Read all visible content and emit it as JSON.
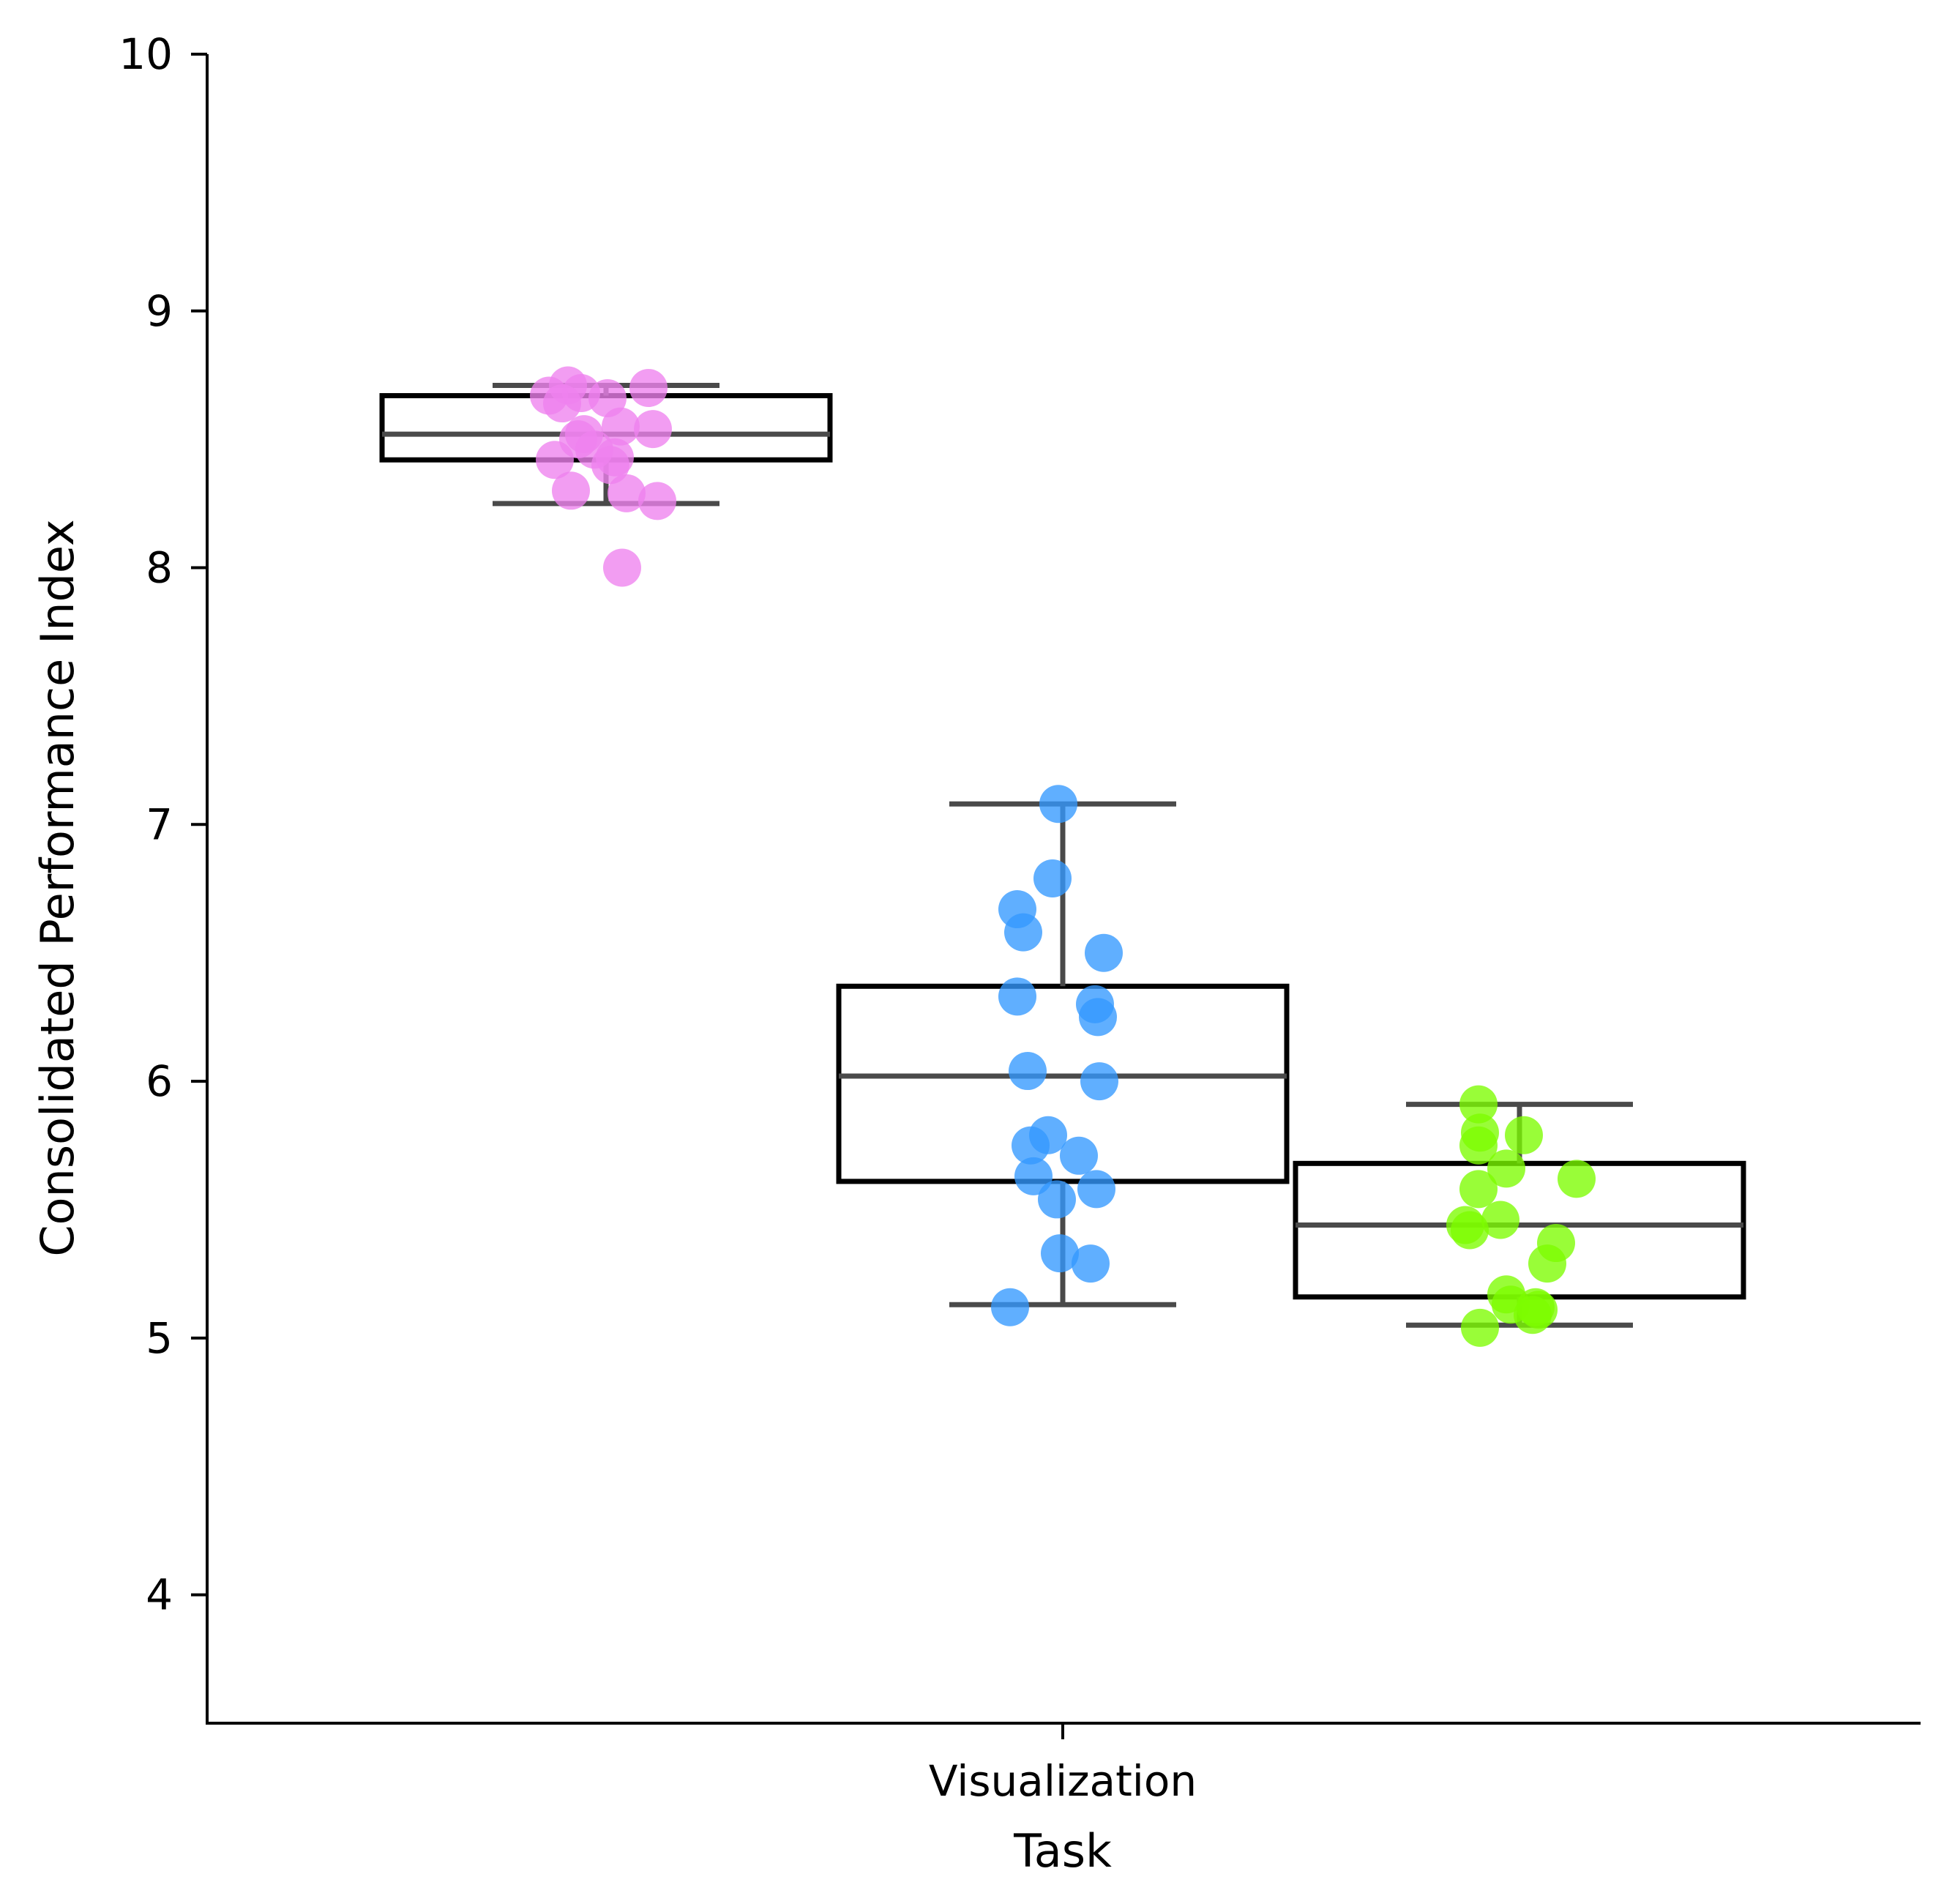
{
  "chart_data": {
    "type": "box",
    "title": "",
    "xlabel": "Task",
    "ylabel": "Consolidated Performance Index",
    "categories": [
      "Visualization"
    ],
    "ylim": [
      3.5,
      10
    ],
    "yticks": [
      4,
      5,
      6,
      7,
      8,
      9,
      10
    ],
    "grid": false,
    "legend": "none",
    "series": [
      {
        "color": "#ee82ee",
        "box": {
          "whisker_low": 8.25,
          "q1": 8.42,
          "median": 8.52,
          "q3": 8.67,
          "whisker_high": 8.71
        },
        "points": [
          8.71,
          8.7,
          8.68,
          8.67,
          8.66,
          8.64,
          8.55,
          8.54,
          8.52,
          8.5,
          8.46,
          8.43,
          8.42,
          8.4,
          8.3,
          8.29,
          8.26,
          8.0
        ]
      },
      {
        "color": "#3399ff",
        "box": {
          "whisker_low": 5.13,
          "q1": 5.61,
          "median": 6.02,
          "q3": 6.37,
          "whisker_high": 7.08
        },
        "points": [
          7.08,
          6.79,
          6.67,
          6.58,
          6.5,
          6.33,
          6.3,
          6.25,
          6.04,
          6.0,
          5.79,
          5.75,
          5.71,
          5.63,
          5.58,
          5.54,
          5.33,
          5.29,
          5.12
        ]
      },
      {
        "color": "#7cfc00",
        "box": {
          "whisker_low": 5.05,
          "q1": 5.16,
          "median": 5.44,
          "q3": 5.68,
          "whisker_high": 5.91
        },
        "points": [
          5.91,
          5.8,
          5.79,
          5.75,
          5.66,
          5.62,
          5.58,
          5.46,
          5.44,
          5.42,
          5.37,
          5.29,
          5.17,
          5.13,
          5.12,
          5.11,
          5.09,
          5.04
        ]
      }
    ]
  }
}
